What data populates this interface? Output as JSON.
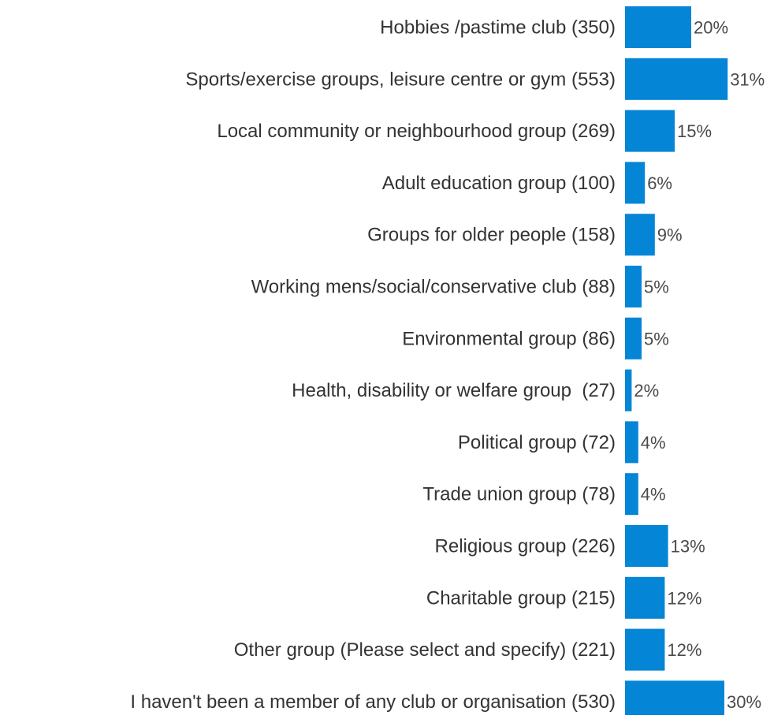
{
  "chart_data": {
    "type": "bar",
    "orientation": "horizontal",
    "categories": [
      "Hobbies /pastime club (350)",
      "Sports/exercise groups, leisure centre or gym (553)",
      "Local community or neighbourhood group (269)",
      "Adult education group (100)",
      "Groups for older people (158)",
      "Working mens/social/conservative club (88)",
      "Environmental group (86)",
      "Health, disability or welfare group  (27)",
      "Political group (72)",
      "Trade union group (78)",
      "Religious group (226)",
      "Charitable group (215)",
      "Other group (Please select and specify) (221)",
      "I haven't been a member of any club or organisation (530)"
    ],
    "values": [
      20,
      31,
      15,
      6,
      9,
      5,
      5,
      2,
      4,
      4,
      13,
      12,
      12,
      30
    ],
    "value_labels": [
      "20%",
      "31%",
      "15%",
      "6%",
      "9%",
      "5%",
      "5%",
      "2%",
      "4%",
      "4%",
      "13%",
      "12%",
      "12%",
      "30%"
    ],
    "unit": "%",
    "title": "",
    "xlabel": "",
    "ylabel": "",
    "xlim": [
      0,
      31
    ],
    "grid": false,
    "legend": "none",
    "colors": {
      "bar": "#0585d6",
      "category_text": "#333333",
      "value_text": "#4a4a4a",
      "background": "#ffffff"
    }
  }
}
